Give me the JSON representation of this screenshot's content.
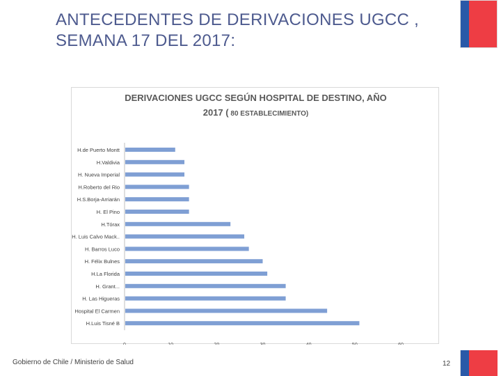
{
  "slide": {
    "title_line1": "ANTECEDENTES DE DERIVACIONES UGCC ,",
    "title_line2": "SEMANA 17 DEL 2017:",
    "footer_text": "Gobierno de Chile / Ministerio de Salud",
    "page_number": "12",
    "flag_colors": {
      "blue": "#2a59a8",
      "red": "#ee3d44"
    }
  },
  "chart_data": {
    "type": "bar",
    "orientation": "horizontal",
    "title_line1": "DERIVACIONES UGCC SEGÚN HOSPITAL DE DESTINO, AÑO",
    "title_line2": "2017 (",
    "title_line2_small": " 80 ESTABLECIMIENTO)",
    "categories": [
      "H.de Puerto Montt",
      "H.Valdivia",
      "H. Nueva Imperial",
      "H.Roberto del Rio",
      "H.S.Borja-Arriarán",
      "H. El Pino",
      "H.Tórax",
      "H. Luis Calvo Mack..",
      "H. Barros Luco",
      "H. Félix Bulnes",
      "H.La Florida",
      "H. Grant...",
      "H. Las Higueras",
      "Hospital El Carmen",
      "H.Luis Tisné B"
    ],
    "values": [
      11,
      13,
      13,
      14,
      14,
      14,
      23,
      26,
      27,
      30,
      31,
      35,
      35,
      44,
      51
    ],
    "xlim": [
      0,
      60
    ],
    "xticks": [
      "0",
      "10",
      "20",
      "30",
      "40",
      "50",
      "60"
    ],
    "bar_color": "#7f9fd4",
    "grid": false
  }
}
